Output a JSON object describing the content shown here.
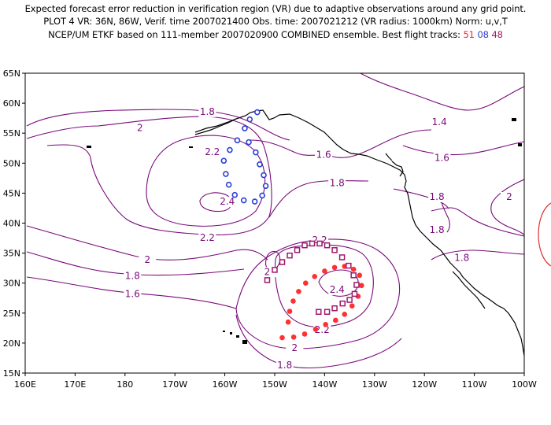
{
  "header": {
    "line1": "Expected forecast error reduction in verification region (VR) due to adaptive observations around any grid point.",
    "line2": "PLOT 4 VR: 36N, 86W, Verif. time 2007021400 Obs. time: 2007021212 (VR radius: 1000km) Norm: u,v,T",
    "line3_prefix": "NCEP/UM ETKF based on 111-member 2007020900 COMBINED ensemble.  Best flight tracks:",
    "track_a": "51",
    "track_b": "08",
    "track_c": "48"
  },
  "axes": {
    "lon_labels": [
      "160E",
      "170E",
      "180",
      "170W",
      "160W",
      "150W",
      "140W",
      "130W",
      "120W",
      "110W",
      "100W"
    ],
    "lat_labels": [
      "65N",
      "60N",
      "55N",
      "50N",
      "45N",
      "40N",
      "35N",
      "30N",
      "25N",
      "20N",
      "15N"
    ]
  },
  "contour_labels": [
    {
      "text": "1.8",
      "lon": -163.5,
      "lat": 58.2
    },
    {
      "text": "2",
      "lon": -177,
      "lat": 55.5
    },
    {
      "text": "2.2",
      "lon": -162.5,
      "lat": 51.5
    },
    {
      "text": "2.4",
      "lon": -159.5,
      "lat": 43.2
    },
    {
      "text": "2.2",
      "lon": -163.5,
      "lat": 37.2
    },
    {
      "text": "1.6",
      "lon": -140.2,
      "lat": 51
    },
    {
      "text": "1.8",
      "lon": -137.5,
      "lat": 46.3
    },
    {
      "text": "1.4",
      "lon": -117,
      "lat": 56.5
    },
    {
      "text": "1.6",
      "lon": -116.5,
      "lat": 50.5
    },
    {
      "text": "1.8",
      "lon": -117.5,
      "lat": 44
    },
    {
      "text": "1.8",
      "lon": -117.5,
      "lat": 38.5
    },
    {
      "text": "2",
      "lon": -103,
      "lat": 44
    },
    {
      "text": "1.8",
      "lon": -112.5,
      "lat": 33.8
    },
    {
      "text": "2",
      "lon": -175.5,
      "lat": 33.5
    },
    {
      "text": "1.8",
      "lon": -178.5,
      "lat": 30.8
    },
    {
      "text": "1.6",
      "lon": -178.5,
      "lat": 27.8
    },
    {
      "text": "2.2",
      "lon": -141,
      "lat": 36.8
    },
    {
      "text": "2",
      "lon": -151.5,
      "lat": 31.5
    },
    {
      "text": "2.4",
      "lon": -137.5,
      "lat": 28.5
    },
    {
      "text": "2.2",
      "lon": -140.5,
      "lat": 21.8
    },
    {
      "text": "2",
      "lon": -146,
      "lat": 18.8
    },
    {
      "text": "1.8",
      "lon": -148,
      "lat": 15.9
    }
  ],
  "flight_tracks": [
    {
      "id": "08",
      "marker": "circle",
      "color": "#2a40d8",
      "points": [
        [
          -153.5,
          58.5
        ],
        [
          -155,
          57.3
        ],
        [
          -156,
          55.8
        ],
        [
          -157.5,
          53.8
        ],
        [
          -159,
          52.2
        ],
        [
          -160.2,
          50.4
        ],
        [
          -159.8,
          48.2
        ],
        [
          -159.2,
          46.4
        ],
        [
          -158,
          44.7
        ],
        [
          -156.2,
          43.8
        ],
        [
          -154,
          43.6
        ],
        [
          -152.5,
          44.6
        ],
        [
          -151.8,
          46.2
        ],
        [
          -152.2,
          48.0
        ],
        [
          -153,
          49.8
        ],
        [
          -153.8,
          51.8
        ],
        [
          -155.2,
          53.5
        ]
      ]
    },
    {
      "id": "51",
      "marker": "dot",
      "color": "#ff3030",
      "points": [
        [
          -148.5,
          20.9
        ],
        [
          -146.2,
          21.0
        ],
        [
          -144,
          21.5
        ],
        [
          -141.8,
          22.3
        ],
        [
          -139.8,
          23.1
        ],
        [
          -137.8,
          23.8
        ],
        [
          -136,
          24.8
        ],
        [
          -134.5,
          26.2
        ],
        [
          -133.3,
          27.8
        ],
        [
          -132.6,
          29.6
        ],
        [
          -133,
          31.3
        ],
        [
          -134.2,
          32.3
        ],
        [
          -136,
          32.8
        ],
        [
          -138,
          32.6
        ],
        [
          -140,
          32
        ],
        [
          -142,
          31.1
        ],
        [
          -143.8,
          30.0
        ],
        [
          -145.2,
          28.6
        ],
        [
          -146.3,
          27.0
        ],
        [
          -147,
          25.3
        ],
        [
          -147.3,
          23.5
        ]
      ]
    },
    {
      "id": "48",
      "marker": "square",
      "color": "#a0186a",
      "points": [
        [
          -151.5,
          30.5
        ],
        [
          -150,
          32.2
        ],
        [
          -148.5,
          33.5
        ],
        [
          -147,
          34.6
        ],
        [
          -145.5,
          35.5
        ],
        [
          -144,
          36.3
        ],
        [
          -142.5,
          36.6
        ],
        [
          -141,
          36.6
        ],
        [
          -139.5,
          36.3
        ],
        [
          -138,
          35.5
        ],
        [
          -136.5,
          34.3
        ],
        [
          -135.2,
          32.9
        ],
        [
          -134.2,
          31.3
        ],
        [
          -133.6,
          29.7
        ],
        [
          -134,
          28.2
        ],
        [
          -135,
          27.2
        ],
        [
          -136.4,
          26.6
        ],
        [
          -138,
          25.8
        ],
        [
          -139.5,
          25.2
        ],
        [
          -141.2,
          25.2
        ]
      ]
    }
  ],
  "colors": {
    "contour": "#7a0a7a",
    "coast": "#000000",
    "vr_circle": "#e03030"
  },
  "extent": {
    "lon": [
      160,
      260
    ],
    "lat": [
      15,
      65
    ]
  }
}
